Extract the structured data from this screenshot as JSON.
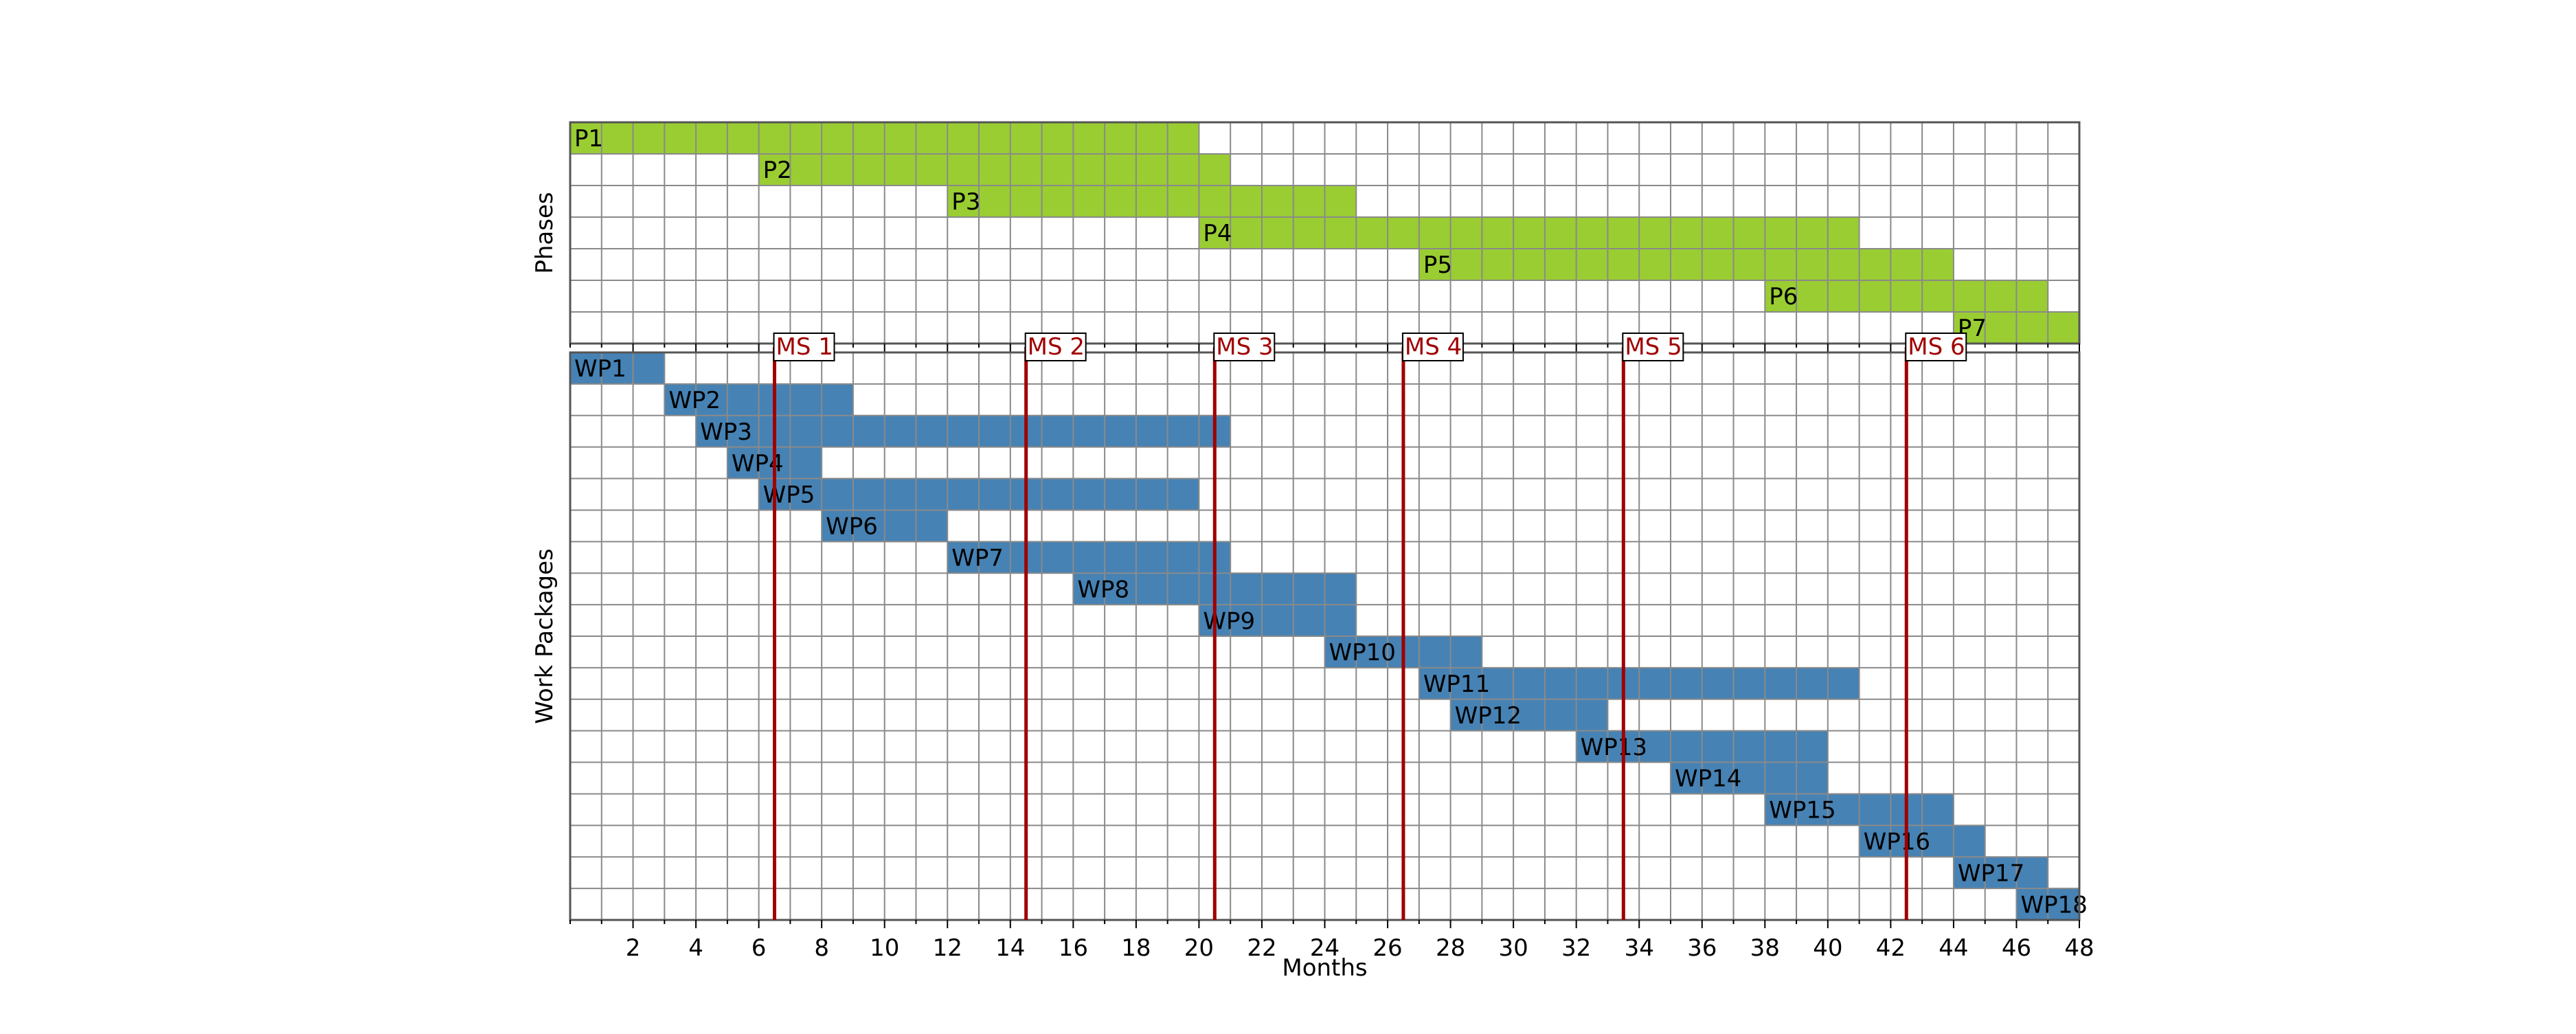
{
  "chart_data": {
    "type": "gantt",
    "xlabel": "Months",
    "x_ticks": [
      2,
      4,
      6,
      8,
      10,
      12,
      14,
      16,
      18,
      20,
      22,
      24,
      26,
      28,
      30,
      32,
      34,
      36,
      38,
      40,
      42,
      44,
      46,
      48
    ],
    "xlim": [
      0,
      48
    ],
    "grid": true,
    "panels": [
      {
        "ylabel": "Phases",
        "color": "#9acd32",
        "bars": [
          {
            "label": "P1",
            "start": 0,
            "end": 20
          },
          {
            "label": "P2",
            "start": 6,
            "end": 21
          },
          {
            "label": "P3",
            "start": 12,
            "end": 25
          },
          {
            "label": "P4",
            "start": 20,
            "end": 41
          },
          {
            "label": "P5",
            "start": 27,
            "end": 44
          },
          {
            "label": "P6",
            "start": 38,
            "end": 47
          },
          {
            "label": "P7",
            "start": 44,
            "end": 48
          }
        ]
      },
      {
        "ylabel": "Work Packages",
        "color": "#4682b4",
        "bars": [
          {
            "label": "WP1",
            "start": 0,
            "end": 3
          },
          {
            "label": "WP2",
            "start": 3,
            "end": 9
          },
          {
            "label": "WP3",
            "start": 4,
            "end": 21
          },
          {
            "label": "WP4",
            "start": 5,
            "end": 8
          },
          {
            "label": "WP5",
            "start": 6,
            "end": 20
          },
          {
            "label": "WP6",
            "start": 8,
            "end": 12
          },
          {
            "label": "WP7",
            "start": 12,
            "end": 21
          },
          {
            "label": "WP8",
            "start": 16,
            "end": 25
          },
          {
            "label": "WP9",
            "start": 20,
            "end": 25
          },
          {
            "label": "WP10",
            "start": 24,
            "end": 29
          },
          {
            "label": "WP11",
            "start": 27,
            "end": 41
          },
          {
            "label": "WP12",
            "start": 28,
            "end": 33
          },
          {
            "label": "WP13",
            "start": 32,
            "end": 40
          },
          {
            "label": "WP14",
            "start": 35,
            "end": 40
          },
          {
            "label": "WP15",
            "start": 38,
            "end": 44
          },
          {
            "label": "WP16",
            "start": 41,
            "end": 45
          },
          {
            "label": "WP17",
            "start": 44,
            "end": 47
          },
          {
            "label": "WP18",
            "start": 46,
            "end": 48
          }
        ]
      }
    ],
    "milestones": [
      {
        "label": "MS 1",
        "month": 6
      },
      {
        "label": "MS 2",
        "month": 14
      },
      {
        "label": "MS 3",
        "month": 20
      },
      {
        "label": "MS 4",
        "month": 26
      },
      {
        "label": "MS 5",
        "month": 33
      },
      {
        "label": "MS 6",
        "month": 42
      }
    ],
    "milestone_color": "#a00000"
  }
}
